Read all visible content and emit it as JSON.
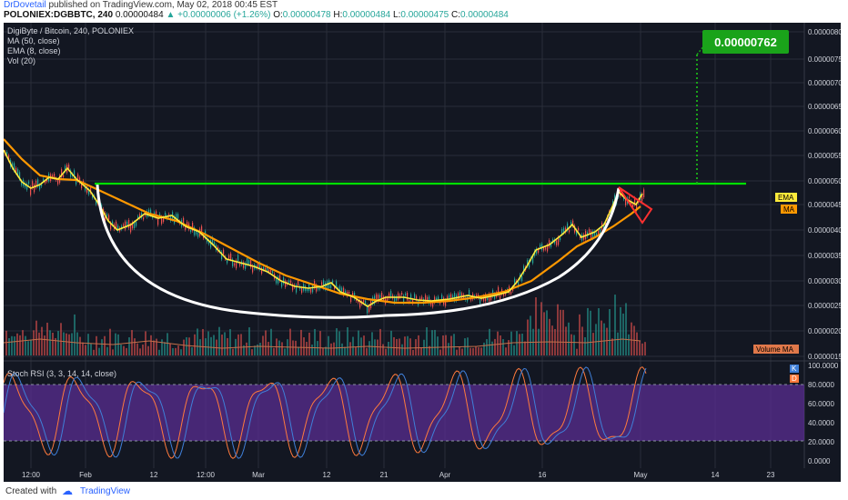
{
  "header": {
    "author": "DrDovetail",
    "published_text": " published on TradingView.com, May 02, 2018 00:45 EST",
    "symbol": "POLONIEX:DGBBTC, 240",
    "last": "0.00000484",
    "change_arrow": "▲",
    "change": "+0.00000006 (+1.26%)",
    "o_label": "O:",
    "o_value": "0.00000478",
    "h_label": "H:",
    "h_value": "0.00000484",
    "l_label": "L:",
    "l_value": "0.00000475",
    "c_label": "C:",
    "c_value": "0.00000484"
  },
  "legend": {
    "title": "DigiByte / Bitcoin, 240, POLONIEX",
    "ma": "MA (50, close)",
    "ema": "EMA (8, close)",
    "vol": "Vol (20)"
  },
  "target_label": "0.00000762",
  "price_axis": [
    "0.00000800",
    "0.00000750",
    "0.00000700",
    "0.00000650",
    "0.00000600",
    "0.00000550",
    "0.00000500",
    "0.00000450",
    "0.00000400",
    "0.00000350",
    "0.00000300",
    "0.00000250",
    "0.00000200",
    "0.00000150"
  ],
  "badges": {
    "ema": "EMA",
    "ma": "MA",
    "volume_ma": "Volume MA"
  },
  "rsi": {
    "title": "Stoch RSI (3, 3, 14, 14, close)",
    "k": "K",
    "d": "D",
    "axis": [
      "100.0000",
      "80.0000",
      "60.0000",
      "40.0000",
      "20.0000",
      "0.0000"
    ]
  },
  "time_axis": [
    "12:00",
    "Feb",
    "12",
    "12:00",
    "Mar",
    "12",
    "21",
    "Apr",
    "16",
    "May",
    "14",
    "23"
  ],
  "footer": {
    "created": "Created with",
    "brand": "TradingView"
  },
  "colors": {
    "background": "#131722",
    "ema": "#ffeb3b",
    "ma": "#ff9800",
    "resistance": "#00e000",
    "cup": "#ffffff",
    "target": "#1aa31a",
    "rsi_band": "#5a2d91",
    "k_line": "#3f7fd8",
    "d_line": "#ff7a3c"
  }
}
